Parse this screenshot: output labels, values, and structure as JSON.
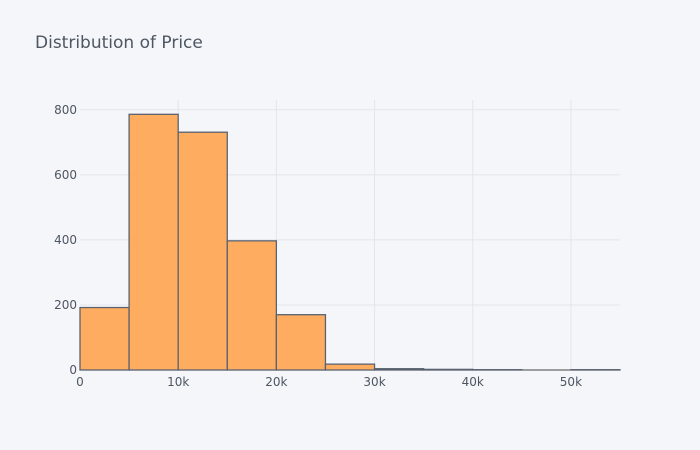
{
  "chart_data": {
    "type": "bar",
    "title": "Distribution of Price",
    "xlabel": "",
    "ylabel": "",
    "bins": [
      {
        "x0": 0,
        "x1": 5000,
        "count": 192
      },
      {
        "x0": 5000,
        "x1": 10000,
        "count": 786
      },
      {
        "x0": 10000,
        "x1": 15000,
        "count": 731
      },
      {
        "x0": 15000,
        "x1": 20000,
        "count": 397
      },
      {
        "x0": 20000,
        "x1": 25000,
        "count": 170
      },
      {
        "x0": 25000,
        "x1": 30000,
        "count": 18
      },
      {
        "x0": 30000,
        "x1": 35000,
        "count": 4
      },
      {
        "x0": 35000,
        "x1": 40000,
        "count": 2
      },
      {
        "x0": 40000,
        "x1": 45000,
        "count": 1
      },
      {
        "x0": 45000,
        "x1": 50000,
        "count": 0
      },
      {
        "x0": 50000,
        "x1": 55000,
        "count": 1
      }
    ],
    "xlim": [
      0,
      55000
    ],
    "ylim": [
      0,
      830
    ],
    "xticks": [
      {
        "value": 0,
        "label": "0"
      },
      {
        "value": 10000,
        "label": "10k"
      },
      {
        "value": 20000,
        "label": "20k"
      },
      {
        "value": 30000,
        "label": "30k"
      },
      {
        "value": 40000,
        "label": "40k"
      },
      {
        "value": 50000,
        "label": "50k"
      }
    ],
    "yticks": [
      {
        "value": 0,
        "label": "0"
      },
      {
        "value": 200,
        "label": "200"
      },
      {
        "value": 400,
        "label": "400"
      },
      {
        "value": 600,
        "label": "600"
      },
      {
        "value": 800,
        "label": "800"
      }
    ],
    "grid": true,
    "colors": {
      "bar_fill": "#ffa54f",
      "bar_stroke": "#5a6270",
      "grid": "#e1e5ed",
      "axis_text": "#4d5663",
      "background": "#f5f6f9"
    }
  }
}
